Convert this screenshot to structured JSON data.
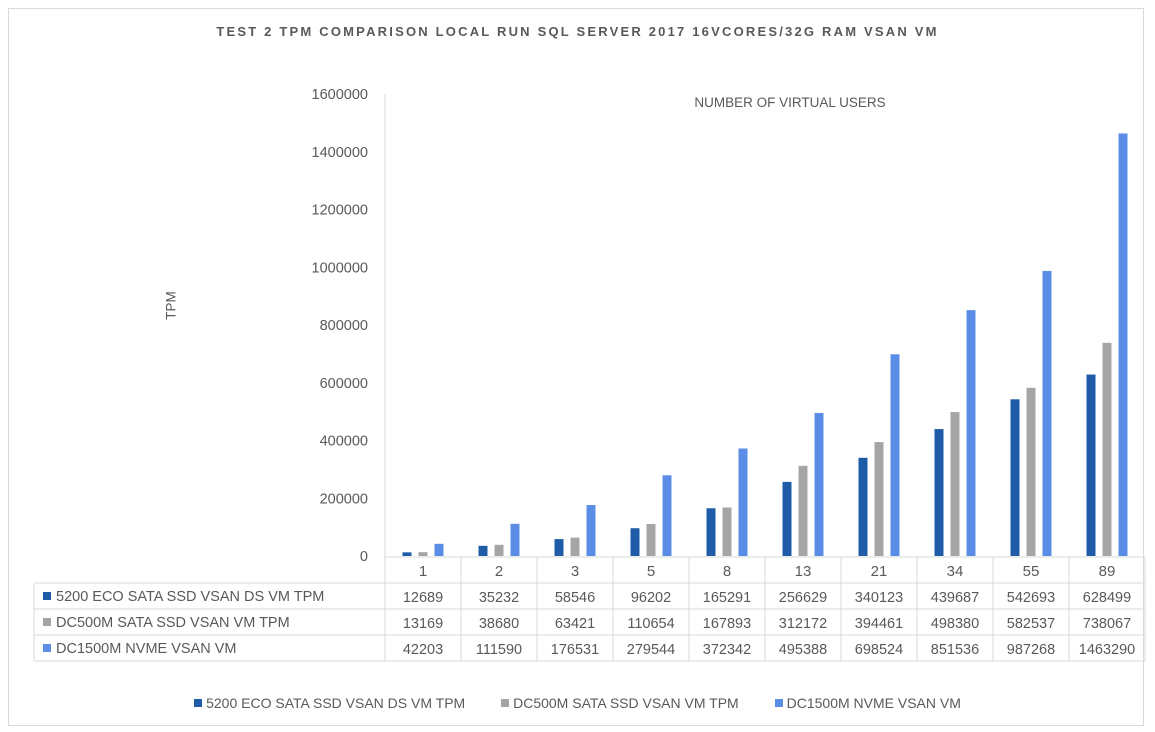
{
  "chart_data": {
    "type": "bar",
    "title": "TEST 2 TPM COMPARISON LOCAL RUN SQL SERVER 2017 16VCORES/32G RAM VSAN VM",
    "xlabel": "NUMBER OF VIRTUAL USERS",
    "ylabel": "TPM",
    "ylim": [
      0,
      1600000
    ],
    "yticks": [
      "0",
      "200000",
      "400000",
      "600000",
      "800000",
      "1000000",
      "1200000",
      "1400000",
      "1600000"
    ],
    "grid": false,
    "legend_position": "bottom",
    "data_table": true,
    "categories": [
      "1",
      "2",
      "3",
      "5",
      "8",
      "13",
      "21",
      "34",
      "55",
      "89"
    ],
    "series": [
      {
        "name": "5200 ECO SATA SSD VSAN DS VM TPM",
        "color": "#1f5ca8",
        "values": [
          12689,
          35232,
          58546,
          96202,
          165291,
          256629,
          340123,
          439687,
          542693,
          628499
        ]
      },
      {
        "name": "DC500M SATA SSD VSAN VM TPM",
        "color": "#a5a5a5",
        "values": [
          13169,
          38680,
          63421,
          110654,
          167893,
          312172,
          394461,
          498380,
          582537,
          738067
        ]
      },
      {
        "name": "DC1500M NVME VSAN VM",
        "color": "#5b8de6",
        "values": [
          42203,
          111590,
          176531,
          279544,
          372342,
          495388,
          698524,
          851536,
          987268,
          1463290
        ]
      }
    ]
  }
}
